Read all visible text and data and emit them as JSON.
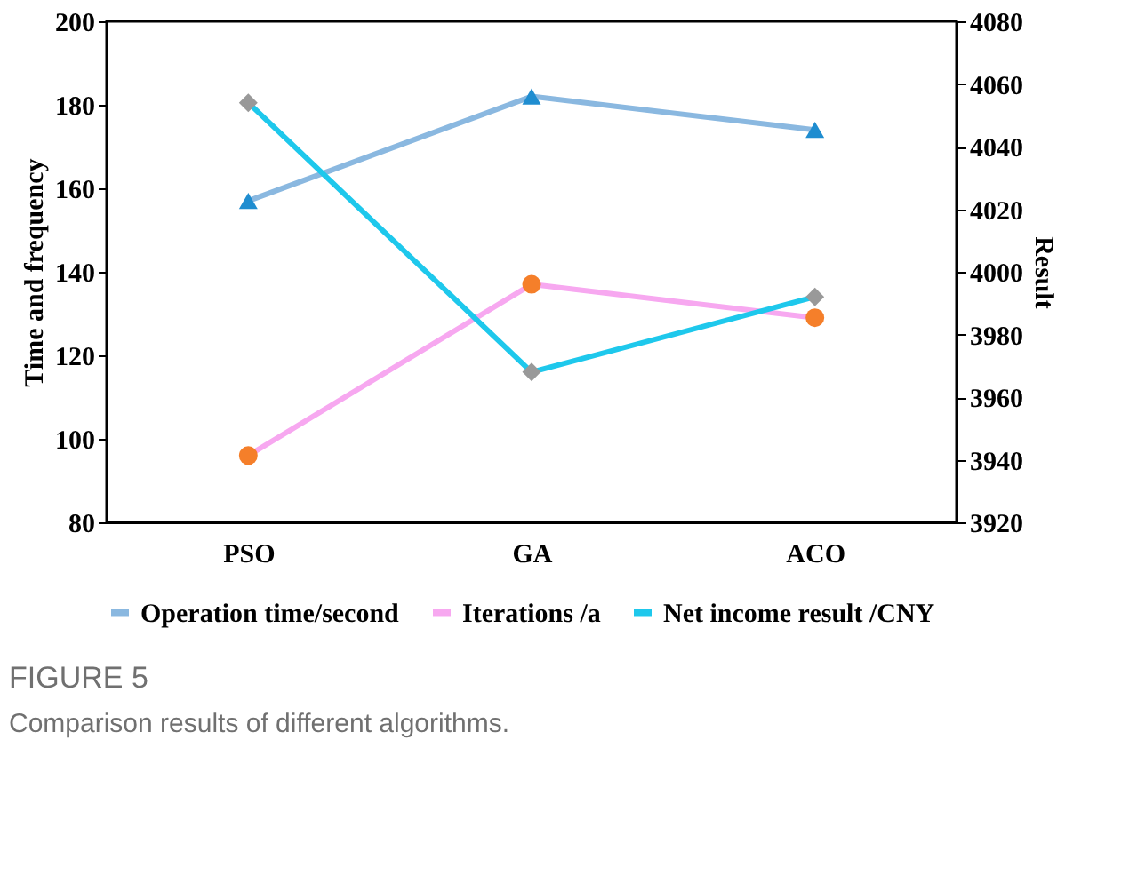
{
  "chart_data": {
    "type": "line",
    "categories": [
      "PSO",
      "GA",
      "ACO"
    ],
    "ylabel": "Time and frequency",
    "y2label": "Result",
    "ylim": [
      80,
      200
    ],
    "yticks": [
      80,
      100,
      120,
      140,
      160,
      180,
      200
    ],
    "y2lim": [
      3920,
      4080
    ],
    "y2ticks": [
      3920,
      3940,
      3960,
      3980,
      4000,
      4020,
      4040,
      4060,
      4080
    ],
    "series": [
      {
        "name": "Operation time/second",
        "color": "#8ab8e0",
        "colors": [
          "#1f8dd0",
          "#1f8dd0",
          "#1f8dd0"
        ],
        "marker": "triangle",
        "values": [
          157,
          182,
          174
        ]
      },
      {
        "name": "Iterations /a",
        "color": "#f7a8f0",
        "colors": [
          "#f57f2a",
          "#f57f2a",
          "#f57f2a"
        ],
        "marker": "circle",
        "values": [
          96,
          137,
          129
        ]
      },
      {
        "name": "Net income result /CNY",
        "color": "#1ec8ec",
        "colors": [
          "#999999",
          "#999999",
          "#999999"
        ],
        "marker": "diamond",
        "axis": "y2",
        "values": [
          4054,
          3968,
          3992
        ]
      }
    ],
    "legend": "bottom",
    "grid": false,
    "annotations": [
      "FIGURE 5",
      "Comparison results of different algorithms."
    ]
  }
}
